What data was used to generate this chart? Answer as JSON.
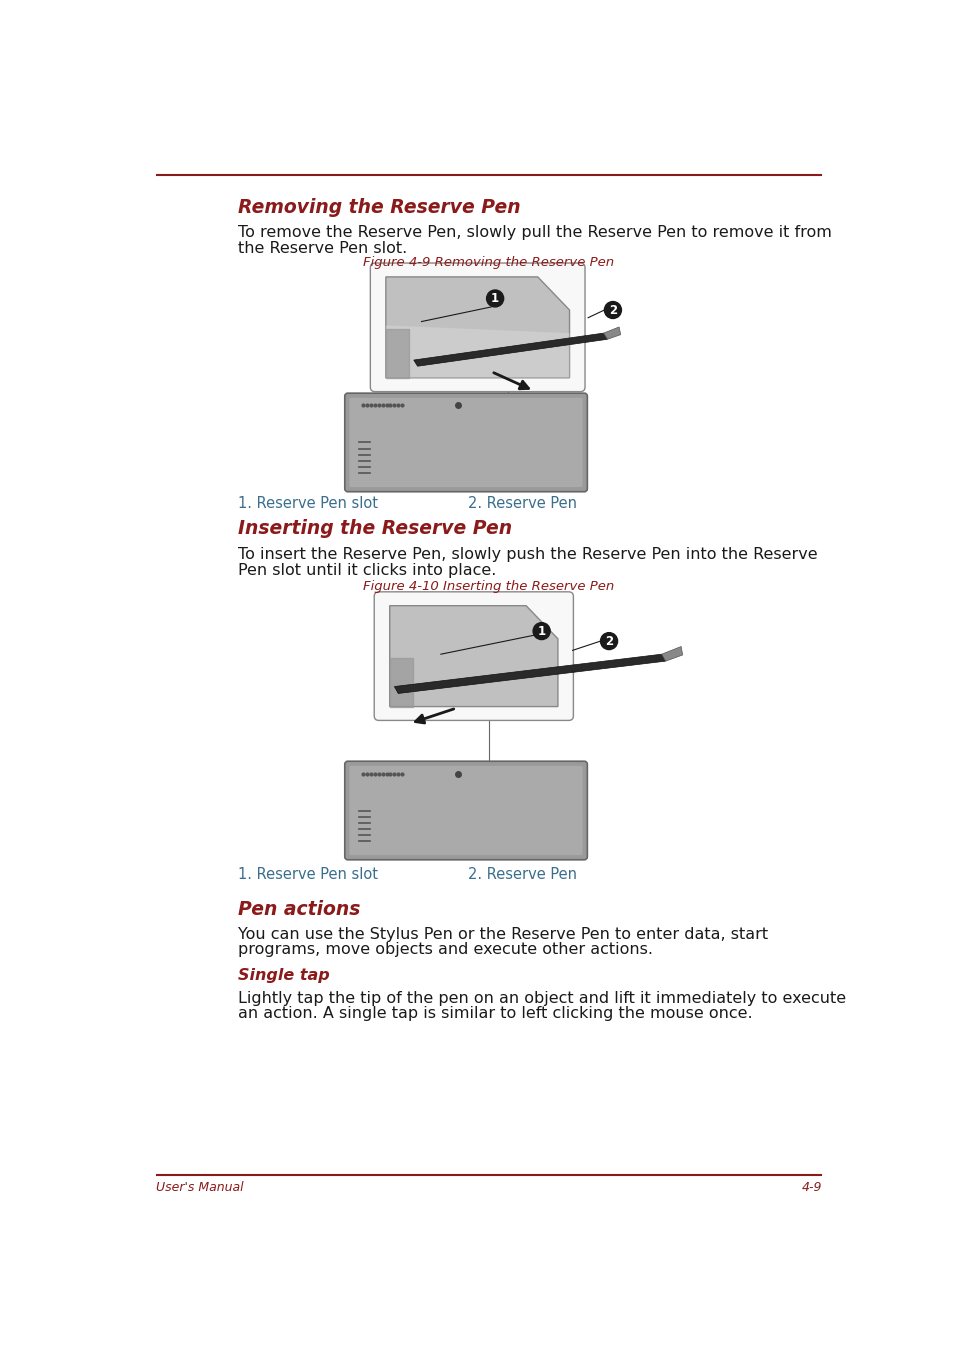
{
  "bg_color": "#ffffff",
  "accent_color": "#8B1A1A",
  "text_color": "#1a1a1a",
  "label_color": "#3a6e8c",
  "section1_heading": "Removing the Reserve Pen",
  "section1_body1": "To remove the Reserve Pen, slowly pull the Reserve Pen to remove it from",
  "section1_body2": "the Reserve Pen slot.",
  "section1_fig_caption": "Figure 4-9 Removing the Reserve Pen",
  "section1_label1": "1. Reserve Pen slot",
  "section1_label2": "2. Reserve Pen",
  "section2_heading": "Inserting the Reserve Pen",
  "section2_body1": "To insert the Reserve Pen, slowly push the Reserve Pen into the Reserve",
  "section2_body2": "Pen slot until it clicks into place.",
  "section2_fig_caption": "Figure 4-10 Inserting the Reserve Pen",
  "section2_label1": "1. Reserve Pen slot",
  "section2_label2": "2. Reserve Pen",
  "section3_heading": "Pen actions",
  "section3_body1": "You can use the Stylus Pen or the Reserve Pen to enter data, start",
  "section3_body2": "programs, move objects and execute other actions.",
  "section4_heading": "Single tap",
  "section4_body1": "Lightly tap the tip of the pen on an object and lift it immediately to execute",
  "section4_body2": "an action. A single tap is similar to left clicking the mouse once.",
  "footer_left": "User's Manual",
  "footer_right": "4-9"
}
